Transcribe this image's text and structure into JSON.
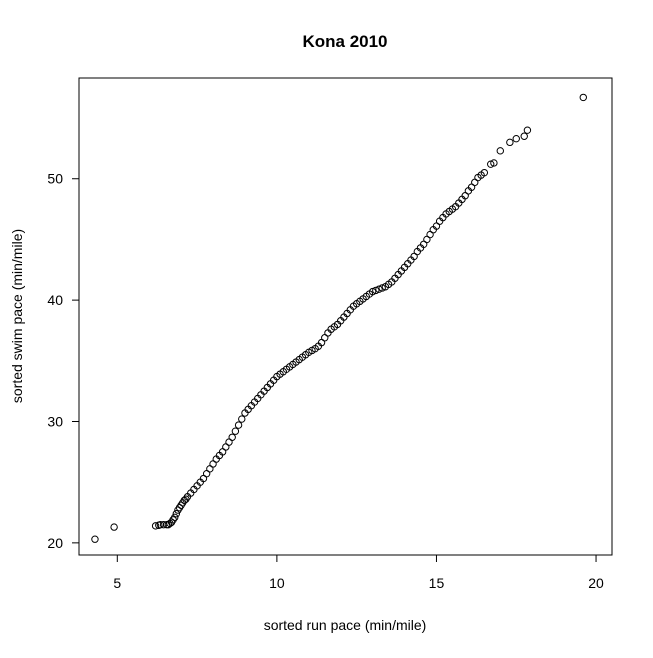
{
  "chart_data": {
    "type": "scatter",
    "title": "Kona 2010",
    "xlabel": "sorted run pace (min/mile)",
    "ylabel": "sorted swim pace (min/mile)",
    "xlim": [
      3.8,
      20.5
    ],
    "ylim": [
      19.0,
      58.3
    ],
    "x_ticks": [
      5,
      10,
      15,
      20
    ],
    "y_ticks": [
      20,
      30,
      40,
      50
    ],
    "x_tick_labels": [
      "5",
      "10",
      "15",
      "20"
    ],
    "y_tick_labels": [
      "20",
      "30",
      "40",
      "50"
    ],
    "grid": false,
    "legend": "none",
    "marker": "open-circle",
    "color": "#000000",
    "points_x": [
      4.3,
      4.9,
      6.2,
      6.3,
      6.35,
      6.45,
      6.55,
      6.6,
      6.65,
      6.7,
      6.75,
      6.8,
      6.85,
      6.9,
      6.95,
      7.0,
      7.05,
      7.1,
      7.15,
      7.2,
      7.3,
      7.4,
      7.5,
      7.6,
      7.7,
      7.8,
      7.9,
      8.0,
      8.1,
      8.2,
      8.3,
      8.4,
      8.5,
      8.6,
      8.7,
      8.8,
      8.9,
      9.0,
      9.1,
      9.2,
      9.3,
      9.4,
      9.5,
      9.6,
      9.7,
      9.8,
      9.9,
      10.0,
      10.1,
      10.2,
      10.3,
      10.4,
      10.5,
      10.6,
      10.7,
      10.8,
      10.9,
      11.0,
      11.1,
      11.2,
      11.3,
      11.4,
      11.5,
      11.6,
      11.7,
      11.8,
      11.9,
      12.0,
      12.1,
      12.2,
      12.3,
      12.4,
      12.5,
      12.6,
      12.7,
      12.8,
      12.9,
      13.0,
      13.1,
      13.2,
      13.3,
      13.4,
      13.5,
      13.6,
      13.7,
      13.8,
      13.9,
      14.0,
      14.1,
      14.2,
      14.3,
      14.4,
      14.5,
      14.6,
      14.7,
      14.8,
      14.9,
      15.0,
      15.1,
      15.2,
      15.3,
      15.4,
      15.5,
      15.6,
      15.7,
      15.8,
      15.9,
      16.0,
      16.1,
      16.2,
      16.3,
      16.4,
      16.5,
      16.7,
      16.8,
      17.0,
      17.3,
      17.5,
      17.75,
      17.85,
      19.6
    ],
    "points_y": [
      20.3,
      21.3,
      21.4,
      21.45,
      21.5,
      21.5,
      21.5,
      21.5,
      21.6,
      21.7,
      21.9,
      22.1,
      22.4,
      22.7,
      22.9,
      23.1,
      23.3,
      23.5,
      23.6,
      23.8,
      24.1,
      24.4,
      24.7,
      25.0,
      25.3,
      25.7,
      26.1,
      26.5,
      26.9,
      27.2,
      27.5,
      27.9,
      28.3,
      28.7,
      29.2,
      29.7,
      30.2,
      30.7,
      31.0,
      31.3,
      31.6,
      31.9,
      32.2,
      32.5,
      32.8,
      33.1,
      33.4,
      33.7,
      33.9,
      34.1,
      34.3,
      34.5,
      34.7,
      34.9,
      35.1,
      35.3,
      35.5,
      35.7,
      35.85,
      36.0,
      36.2,
      36.5,
      36.9,
      37.3,
      37.6,
      37.8,
      38.0,
      38.3,
      38.6,
      38.9,
      39.2,
      39.5,
      39.7,
      39.9,
      40.1,
      40.3,
      40.5,
      40.7,
      40.8,
      40.9,
      41.0,
      41.1,
      41.3,
      41.5,
      41.8,
      42.1,
      42.4,
      42.7,
      43.0,
      43.3,
      43.6,
      44.0,
      44.3,
      44.6,
      45.0,
      45.4,
      45.8,
      46.1,
      46.5,
      46.8,
      47.1,
      47.3,
      47.5,
      47.7,
      48.0,
      48.3,
      48.6,
      49.0,
      49.3,
      49.7,
      50.1,
      50.3,
      50.5,
      51.2,
      51.3,
      52.3,
      53.0,
      53.3,
      53.5,
      54.0,
      56.7
    ]
  }
}
